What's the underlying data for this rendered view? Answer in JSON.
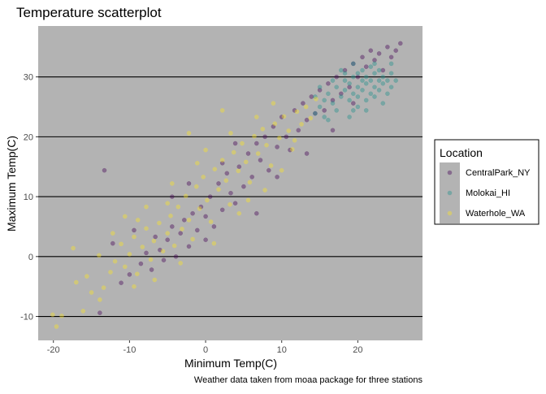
{
  "chart_data": {
    "type": "scatter",
    "title": "Temperature scatterplot",
    "xlabel": "Minimum Temp(C)",
    "ylabel": "Maximum Temp(C)",
    "caption": "Weather data taken from moaa package for three stations",
    "xlim": [
      -22,
      28.5
    ],
    "ylim": [
      -14,
      38.5
    ],
    "xticks": [
      -20,
      -10,
      0,
      10,
      20
    ],
    "yticks": [
      -10,
      0,
      10,
      20,
      30
    ],
    "panel_color": "#b3b3b3",
    "gridlines": "major y only, black",
    "point_alpha": 0.4,
    "legend": {
      "title": "Location",
      "placement": "right"
    },
    "series": [
      {
        "name": "CentralPark_NY",
        "color": "#440154",
        "points": [
          [
            -13.3,
            14.4
          ],
          [
            -13.9,
            -9.4
          ],
          [
            -10.0,
            -3.0
          ],
          [
            -8.5,
            -1.2
          ],
          [
            -7.8,
            0.6
          ],
          [
            -7.1,
            -2.2
          ],
          [
            -6.6,
            3.3
          ],
          [
            -6.0,
            1.1
          ],
          [
            -5.5,
            -0.6
          ],
          [
            -5.0,
            2.8
          ],
          [
            -4.4,
            5.0
          ],
          [
            -3.9,
            0.0
          ],
          [
            -3.3,
            3.9
          ],
          [
            -2.8,
            6.1
          ],
          [
            -2.2,
            1.7
          ],
          [
            -1.7,
            7.2
          ],
          [
            -1.1,
            4.4
          ],
          [
            -0.6,
            8.3
          ],
          [
            0.0,
            2.8
          ],
          [
            0.0,
            6.7
          ],
          [
            0.6,
            10.0
          ],
          [
            1.1,
            5.0
          ],
          [
            1.7,
            12.2
          ],
          [
            2.2,
            7.8
          ],
          [
            2.8,
            13.9
          ],
          [
            3.3,
            10.6
          ],
          [
            3.9,
            8.9
          ],
          [
            4.4,
            15.0
          ],
          [
            5.0,
            11.7
          ],
          [
            5.6,
            17.2
          ],
          [
            6.1,
            13.3
          ],
          [
            6.7,
            18.9
          ],
          [
            7.2,
            16.1
          ],
          [
            7.8,
            20.0
          ],
          [
            8.3,
            14.4
          ],
          [
            8.9,
            21.7
          ],
          [
            9.4,
            18.3
          ],
          [
            10.0,
            23.3
          ],
          [
            10.6,
            20.0
          ],
          [
            11.1,
            17.8
          ],
          [
            11.7,
            24.4
          ],
          [
            12.2,
            21.1
          ],
          [
            12.8,
            25.6
          ],
          [
            13.3,
            22.8
          ],
          [
            13.9,
            26.7
          ],
          [
            14.4,
            23.9
          ],
          [
            15.0,
            27.8
          ],
          [
            15.6,
            24.4
          ],
          [
            16.1,
            28.9
          ],
          [
            16.7,
            26.1
          ],
          [
            17.2,
            30.0
          ],
          [
            17.8,
            27.2
          ],
          [
            18.3,
            31.1
          ],
          [
            18.9,
            28.3
          ],
          [
            19.4,
            32.2
          ],
          [
            20.0,
            30.0
          ],
          [
            20.6,
            33.3
          ],
          [
            21.1,
            31.7
          ],
          [
            21.7,
            34.4
          ],
          [
            22.2,
            32.8
          ],
          [
            22.8,
            33.9
          ],
          [
            23.3,
            31.1
          ],
          [
            23.9,
            35.0
          ],
          [
            24.4,
            33.3
          ],
          [
            25.0,
            34.4
          ],
          [
            25.6,
            35.6
          ],
          [
            -12.2,
            2.2
          ],
          [
            -11.1,
            -4.4
          ],
          [
            -9.4,
            4.4
          ],
          [
            -2.2,
            12.2
          ],
          [
            3.9,
            18.9
          ],
          [
            6.7,
            7.2
          ],
          [
            9.4,
            13.3
          ],
          [
            13.3,
            17.2
          ],
          [
            16.7,
            21.1
          ],
          [
            19.4,
            25.6
          ],
          [
            2.2,
            15.6
          ],
          [
            -4.4,
            10.0
          ]
        ]
      },
      {
        "name": "Molokai_HI",
        "color": "#21908c",
        "points": [
          [
            14.4,
            23.9
          ],
          [
            15.0,
            25.0
          ],
          [
            15.6,
            26.1
          ],
          [
            16.1,
            27.2
          ],
          [
            16.7,
            25.6
          ],
          [
            17.2,
            28.3
          ],
          [
            17.8,
            26.7
          ],
          [
            18.3,
            29.4
          ],
          [
            18.3,
            27.8
          ],
          [
            18.9,
            28.9
          ],
          [
            18.9,
            26.1
          ],
          [
            19.4,
            30.0
          ],
          [
            19.4,
            27.2
          ],
          [
            20.0,
            28.3
          ],
          [
            20.0,
            30.6
          ],
          [
            20.0,
            26.7
          ],
          [
            20.6,
            29.4
          ],
          [
            20.6,
            27.8
          ],
          [
            20.6,
            31.1
          ],
          [
            21.1,
            28.9
          ],
          [
            21.1,
            26.1
          ],
          [
            21.1,
            30.0
          ],
          [
            21.7,
            27.2
          ],
          [
            21.7,
            29.4
          ],
          [
            21.7,
            31.7
          ],
          [
            22.2,
            28.3
          ],
          [
            22.2,
            30.6
          ],
          [
            22.2,
            26.7
          ],
          [
            22.8,
            29.4
          ],
          [
            22.8,
            27.8
          ],
          [
            22.8,
            31.1
          ],
          [
            23.3,
            28.9
          ],
          [
            23.3,
            30.0
          ],
          [
            23.9,
            27.2
          ],
          [
            23.9,
            29.4
          ],
          [
            24.4,
            28.3
          ],
          [
            24.4,
            30.6
          ],
          [
            17.2,
            24.4
          ],
          [
            16.1,
            22.8
          ],
          [
            18.9,
            23.3
          ],
          [
            15.6,
            23.3
          ],
          [
            17.8,
            31.1
          ],
          [
            19.4,
            32.2
          ],
          [
            21.1,
            24.4
          ],
          [
            20.0,
            25.0
          ],
          [
            16.7,
            29.4
          ],
          [
            22.2,
            32.2
          ],
          [
            23.3,
            25.6
          ],
          [
            14.4,
            26.7
          ],
          [
            15.0,
            28.3
          ],
          [
            25.0,
            29.4
          ],
          [
            24.4,
            32.2
          ],
          [
            19.4,
            24.4
          ],
          [
            18.3,
            30.6
          ]
        ]
      },
      {
        "name": "Waterhole_WA",
        "color": "#fde725",
        "points": [
          [
            -19.6,
            -11.7
          ],
          [
            -20.1,
            -9.7
          ],
          [
            -18.9,
            -9.9
          ],
          [
            -17.4,
            1.4
          ],
          [
            -17.0,
            -4.3
          ],
          [
            -16.1,
            -9.1
          ],
          [
            -15.0,
            -6.0
          ],
          [
            -14.0,
            0.2
          ],
          [
            -13.4,
            -5.2
          ],
          [
            -12.5,
            -2.6
          ],
          [
            -11.9,
            -0.8
          ],
          [
            -11.1,
            2.1
          ],
          [
            -10.6,
            -1.7
          ],
          [
            -10.0,
            0.4
          ],
          [
            -9.4,
            3.3
          ],
          [
            -9.0,
            -2.9
          ],
          [
            -8.3,
            1.6
          ],
          [
            -7.8,
            4.7
          ],
          [
            -7.2,
            -0.5
          ],
          [
            -6.8,
            2.6
          ],
          [
            -6.1,
            5.6
          ],
          [
            -5.6,
            0.9
          ],
          [
            -5.0,
            3.9
          ],
          [
            -4.6,
            6.8
          ],
          [
            -4.1,
            1.8
          ],
          [
            -3.6,
            8.3
          ],
          [
            -3.1,
            4.6
          ],
          [
            -2.6,
            10.1
          ],
          [
            -2.2,
            6.1
          ],
          [
            -1.7,
            2.9
          ],
          [
            -1.2,
            11.7
          ],
          [
            -0.8,
            8.0
          ],
          [
            -0.3,
            13.3
          ],
          [
            0.2,
            9.4
          ],
          [
            0.7,
            5.8
          ],
          [
            1.2,
            14.6
          ],
          [
            1.7,
            11.2
          ],
          [
            2.2,
            16.1
          ],
          [
            2.7,
            12.7
          ],
          [
            3.2,
            8.7
          ],
          [
            3.7,
            17.4
          ],
          [
            4.3,
            14.3
          ],
          [
            4.8,
            18.9
          ],
          [
            5.3,
            15.8
          ],
          [
            5.8,
            12.4
          ],
          [
            6.4,
            20.1
          ],
          [
            6.9,
            17.2
          ],
          [
            7.5,
            21.3
          ],
          [
            8.0,
            18.6
          ],
          [
            8.6,
            15.2
          ],
          [
            9.1,
            22.2
          ],
          [
            9.7,
            19.8
          ],
          [
            10.3,
            23.4
          ],
          [
            10.9,
            21.0
          ],
          [
            11.4,
            17.9
          ],
          [
            12.0,
            24.2
          ],
          [
            12.6,
            22.1
          ],
          [
            13.2,
            25.0
          ],
          [
            13.8,
            23.1
          ],
          [
            14.5,
            26.3
          ],
          [
            -15.6,
            -3.3
          ],
          [
            -13.9,
            -7.2
          ],
          [
            -12.2,
            3.9
          ],
          [
            -8.9,
            6.1
          ],
          [
            -6.7,
            -3.9
          ],
          [
            -3.3,
            -1.1
          ],
          [
            -1.1,
            15.6
          ],
          [
            1.1,
            2.2
          ],
          [
            3.3,
            20.6
          ],
          [
            4.4,
            7.2
          ],
          [
            7.8,
            11.1
          ],
          [
            2.2,
            24.4
          ],
          [
            -2.2,
            20.6
          ],
          [
            0.0,
            17.8
          ],
          [
            5.6,
            9.4
          ],
          [
            -9.4,
            -5.0
          ],
          [
            -5.0,
            8.9
          ],
          [
            10.0,
            14.4
          ],
          [
            -7.8,
            8.3
          ],
          [
            -4.4,
            12.2
          ],
          [
            6.7,
            23.3
          ],
          [
            8.9,
            25.6
          ],
          [
            -10.6,
            6.7
          ],
          [
            11.7,
            19.4
          ]
        ]
      }
    ]
  }
}
